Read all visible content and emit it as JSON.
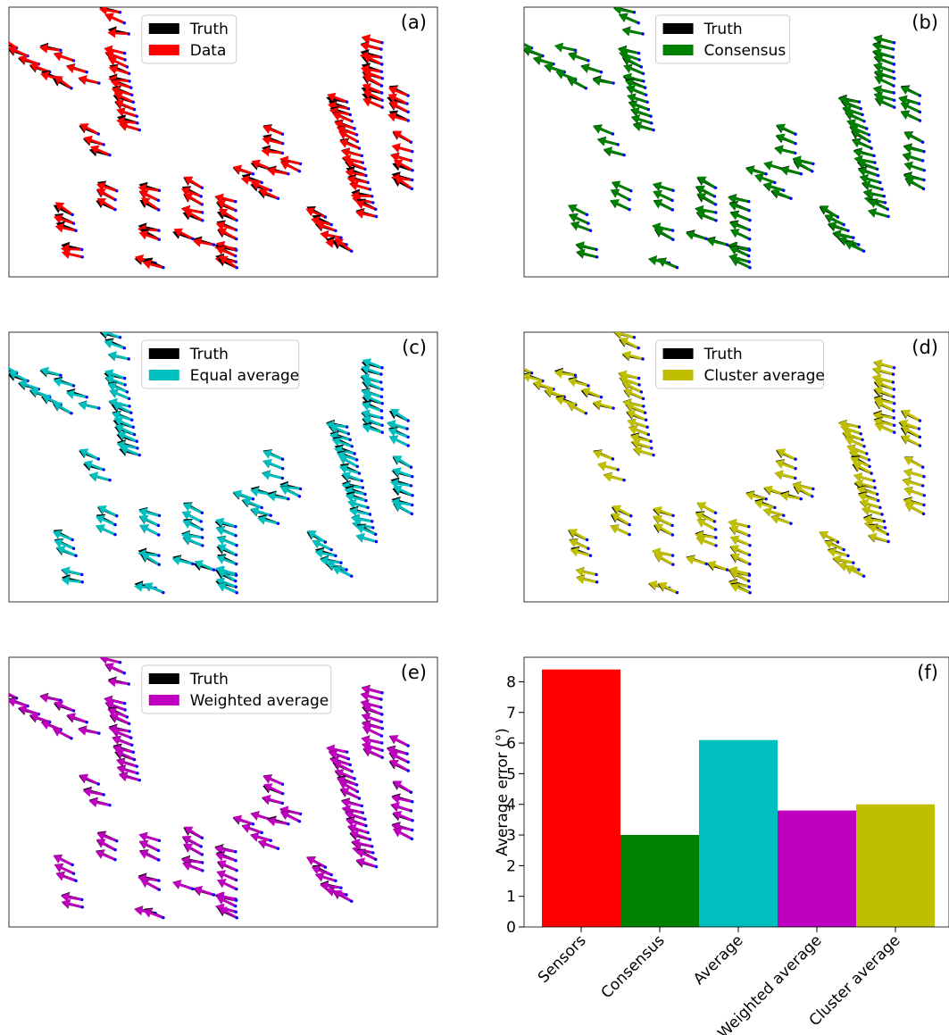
{
  "colors": {
    "truth": "#000000",
    "tip_dot": "#0000ff",
    "data": "#ff0000",
    "consensus": "#008000",
    "equal_average": "#00bfbf",
    "cluster_average": "#bfbf00",
    "weighted_average": "#bf00bf"
  },
  "quiver_panels": [
    {
      "label": "(a)",
      "legend": [
        "Truth",
        "Data"
      ],
      "series_color_key": "data",
      "error_deg": 8.4
    },
    {
      "label": "(b)",
      "legend": [
        "Truth",
        "Consensus"
      ],
      "series_color_key": "consensus",
      "error_deg": 3.0
    },
    {
      "label": "(c)",
      "legend": [
        "Truth",
        "Equal average"
      ],
      "series_color_key": "equal_average",
      "error_deg": 6.1
    },
    {
      "label": "(d)",
      "legend": [
        "Truth",
        "Cluster average"
      ],
      "series_color_key": "cluster_average",
      "error_deg": 4.0
    },
    {
      "label": "(e)",
      "legend": [
        "Truth",
        "Weighted average"
      ],
      "series_color_key": "weighted_average",
      "error_deg": 3.8
    }
  ],
  "chart_data": {
    "type": "bar",
    "label": "(f)",
    "categories": [
      "Sensors",
      "Consensus",
      "Average",
      "Weighted average",
      "Cluster average"
    ],
    "values": [
      8.4,
      3.0,
      6.1,
      3.8,
      4.0
    ],
    "colors": [
      "#ff0000",
      "#008000",
      "#00bfbf",
      "#bf00bf",
      "#bfbf00"
    ],
    "ylabel": "Average error (°)",
    "ylim": [
      0,
      8.8
    ],
    "yticks": [
      "0",
      "1",
      "2",
      "3",
      "4",
      "5",
      "6",
      "7",
      "8"
    ],
    "grid": false
  }
}
